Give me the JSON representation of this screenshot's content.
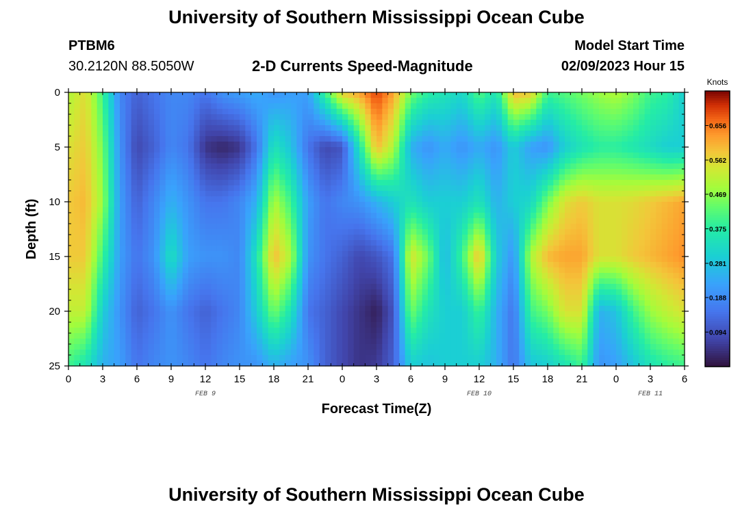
{
  "header": {
    "title": "University of Southern Mississippi Ocean Cube",
    "station": "PTBM6",
    "location": "30.2120N  88.5050W",
    "subtitle": "2-D Currents Speed-Magnitude",
    "model_start_label": "Model Start Time",
    "model_start_value": "02/09/2023 Hour 15"
  },
  "footer": {
    "title": "University of Southern Mississippi Ocean Cube"
  },
  "chart_data": {
    "type": "heatmap",
    "title": "2-D Currents Speed-Magnitude",
    "xlabel": "Forecast Time(Z)",
    "ylabel": "Depth (ft)",
    "x_range_hours": [
      0,
      54
    ],
    "y_range_ft": [
      0,
      25
    ],
    "y_inverted": true,
    "x_tick_labels": [
      "0",
      "3",
      "6",
      "9",
      "12",
      "15",
      "18",
      "21",
      "0",
      "3",
      "6",
      "9",
      "12",
      "15",
      "18",
      "21",
      "0",
      "3",
      "6"
    ],
    "y_tick_labels": [
      "0",
      "5",
      "10",
      "15",
      "20",
      "25"
    ],
    "day_labels": [
      {
        "label": "FEB 9",
        "hour": 12
      },
      {
        "label": "FEB 10",
        "hour": 36
      },
      {
        "label": "FEB 11",
        "hour": 51
      }
    ],
    "colorbar": {
      "unit": "Knots",
      "range": [
        0.0,
        0.75
      ],
      "tick_labels": [
        "0.656",
        "0.562",
        "0.469",
        "0.375",
        "0.281",
        "0.188",
        "0.094"
      ],
      "tick_values": [
        0.656,
        0.562,
        0.469,
        0.375,
        0.281,
        0.188,
        0.094
      ],
      "colormap": "turbo"
    },
    "grid": false,
    "depth_profiles_ft": [
      0,
      5,
      10,
      15,
      20,
      25
    ],
    "speed_by_hour": [
      {
        "hour": 0,
        "speeds": [
          0.5,
          0.55,
          0.58,
          0.58,
          0.52,
          0.4
        ]
      },
      {
        "hour": 1.5,
        "speeds": [
          0.56,
          0.58,
          0.6,
          0.58,
          0.52,
          0.35
        ]
      },
      {
        "hour": 3,
        "speeds": [
          0.4,
          0.45,
          0.48,
          0.4,
          0.3,
          0.25
        ]
      },
      {
        "hour": 4.5,
        "speeds": [
          0.18,
          0.2,
          0.22,
          0.22,
          0.2,
          0.22
        ]
      },
      {
        "hour": 6,
        "speeds": [
          0.12,
          0.08,
          0.12,
          0.15,
          0.12,
          0.15
        ]
      },
      {
        "hour": 7.5,
        "speeds": [
          0.15,
          0.12,
          0.18,
          0.2,
          0.15,
          0.18
        ]
      },
      {
        "hour": 9,
        "speeds": [
          0.18,
          0.18,
          0.25,
          0.34,
          0.2,
          0.2
        ]
      },
      {
        "hour": 10.5,
        "speeds": [
          0.18,
          0.15,
          0.2,
          0.22,
          0.15,
          0.18
        ]
      },
      {
        "hour": 12,
        "speeds": [
          0.15,
          0.05,
          0.15,
          0.2,
          0.12,
          0.15
        ]
      },
      {
        "hour": 13.5,
        "speeds": [
          0.2,
          0.03,
          0.15,
          0.2,
          0.15,
          0.18
        ]
      },
      {
        "hour": 15,
        "speeds": [
          0.22,
          0.05,
          0.18,
          0.18,
          0.18,
          0.2
        ]
      },
      {
        "hour": 16.5,
        "speeds": [
          0.24,
          0.15,
          0.25,
          0.35,
          0.3,
          0.2
        ]
      },
      {
        "hour": 18,
        "speeds": [
          0.2,
          0.35,
          0.5,
          0.6,
          0.45,
          0.25
        ]
      },
      {
        "hour": 19.5,
        "speeds": [
          0.22,
          0.28,
          0.4,
          0.5,
          0.35,
          0.22
        ]
      },
      {
        "hour": 21,
        "speeds": [
          0.22,
          0.15,
          0.22,
          0.2,
          0.15,
          0.2
        ]
      },
      {
        "hour": 22.5,
        "speeds": [
          0.4,
          0.08,
          0.15,
          0.15,
          0.12,
          0.12
        ]
      },
      {
        "hour": 24,
        "speeds": [
          0.58,
          0.1,
          0.18,
          0.12,
          0.08,
          0.08
        ]
      },
      {
        "hour": 25.5,
        "speeds": [
          0.62,
          0.35,
          0.2,
          0.08,
          0.05,
          0.05
        ]
      },
      {
        "hour": 27,
        "speeds": [
          0.7,
          0.6,
          0.25,
          0.1,
          0.02,
          0.06
        ]
      },
      {
        "hour": 28.5,
        "speeds": [
          0.62,
          0.5,
          0.3,
          0.15,
          0.1,
          0.12
        ]
      },
      {
        "hour": 30,
        "speeds": [
          0.45,
          0.25,
          0.35,
          0.55,
          0.45,
          0.3
        ]
      },
      {
        "hour": 31.5,
        "speeds": [
          0.38,
          0.2,
          0.3,
          0.45,
          0.35,
          0.28
        ]
      },
      {
        "hour": 33,
        "speeds": [
          0.35,
          0.24,
          0.3,
          0.26,
          0.3,
          0.3
        ]
      },
      {
        "hour": 34.5,
        "speeds": [
          0.32,
          0.2,
          0.3,
          0.4,
          0.3,
          0.3
        ]
      },
      {
        "hour": 36,
        "speeds": [
          0.42,
          0.24,
          0.35,
          0.6,
          0.4,
          0.3
        ]
      },
      {
        "hour": 37.5,
        "speeds": [
          0.35,
          0.2,
          0.25,
          0.3,
          0.25,
          0.25
        ]
      },
      {
        "hour": 39,
        "speeds": [
          0.6,
          0.3,
          0.3,
          0.2,
          0.15,
          0.15
        ]
      },
      {
        "hour": 40.5,
        "speeds": [
          0.58,
          0.22,
          0.32,
          0.5,
          0.4,
          0.28
        ]
      },
      {
        "hour": 42,
        "speeds": [
          0.4,
          0.2,
          0.45,
          0.6,
          0.45,
          0.3
        ]
      },
      {
        "hour": 43.5,
        "speeds": [
          0.42,
          0.3,
          0.55,
          0.62,
          0.55,
          0.35
        ]
      },
      {
        "hour": 45,
        "speeds": [
          0.45,
          0.35,
          0.58,
          0.62,
          0.55,
          0.4
        ]
      },
      {
        "hour": 46.5,
        "speeds": [
          0.48,
          0.38,
          0.55,
          0.55,
          0.25,
          0.2
        ]
      },
      {
        "hour": 48,
        "speeds": [
          0.5,
          0.38,
          0.55,
          0.55,
          0.28,
          0.22
        ]
      },
      {
        "hour": 49.5,
        "speeds": [
          0.46,
          0.36,
          0.56,
          0.58,
          0.4,
          0.28
        ]
      },
      {
        "hour": 51,
        "speeds": [
          0.4,
          0.33,
          0.58,
          0.6,
          0.48,
          0.35
        ]
      },
      {
        "hour": 52.5,
        "speeds": [
          0.38,
          0.3,
          0.6,
          0.62,
          0.52,
          0.38
        ]
      },
      {
        "hour": 54,
        "speeds": [
          0.3,
          0.3,
          0.62,
          0.64,
          0.55,
          0.4
        ]
      }
    ]
  }
}
